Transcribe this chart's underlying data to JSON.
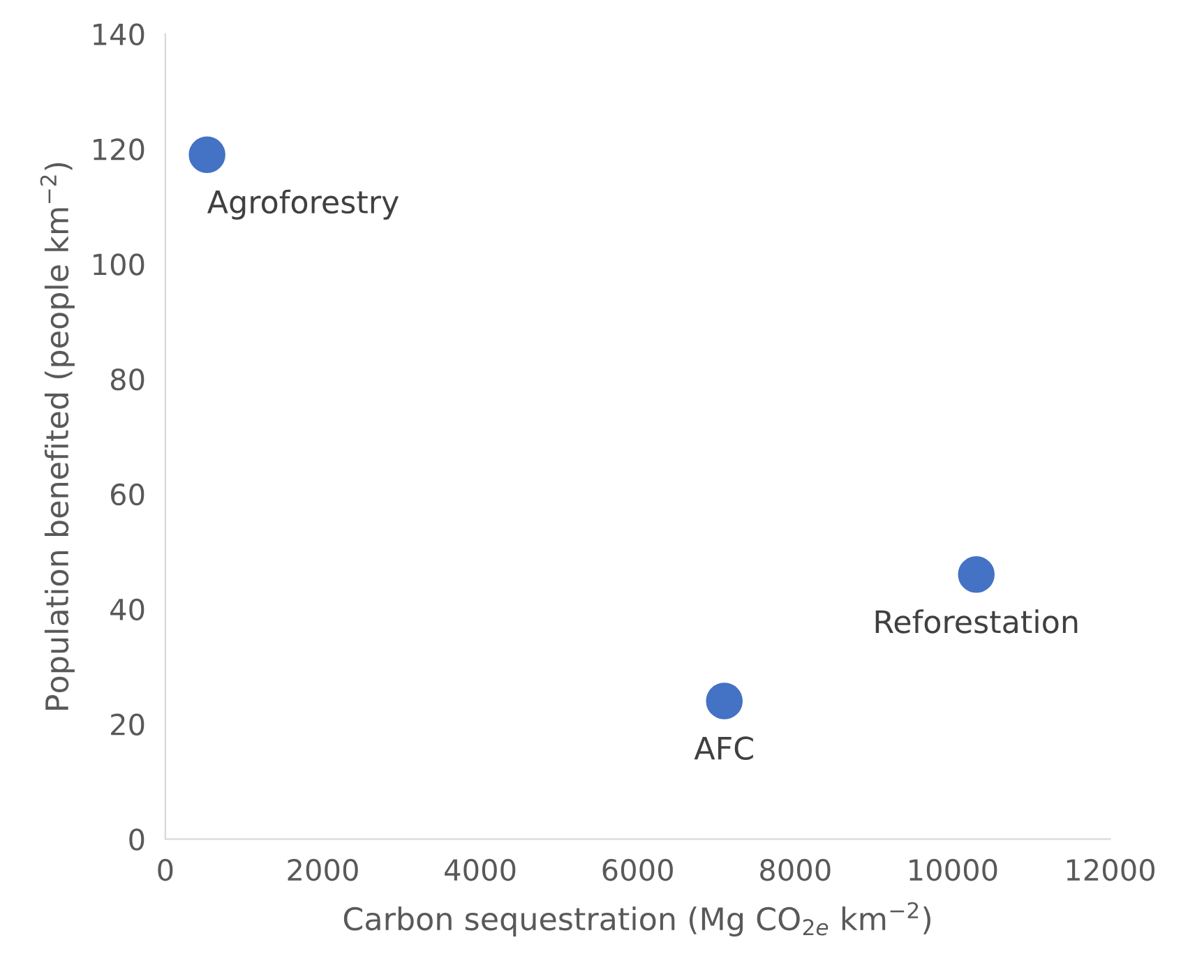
{
  "chart_data": {
    "type": "scatter",
    "xlabel": "Carbon sequestration (Mg CO$_{2e}$ km$^{−2}$)",
    "ylabel": "Population benefited (people km$^{−2}$)",
    "x": [
      530,
      7100,
      10300
    ],
    "values": [
      119,
      24,
      46
    ],
    "color": "#4472c4",
    "marker": "circle",
    "xlim": [
      0,
      12000
    ],
    "xticks": [
      0,
      2000,
      4000,
      6000,
      8000,
      10000,
      12000
    ],
    "ylim": [
      0,
      140
    ],
    "yticks": [
      0,
      20,
      40,
      60,
      80,
      100,
      120,
      140
    ],
    "grid": false,
    "legend": false,
    "annotations": [
      {
        "text": "Agroforestry",
        "x": 530,
        "y": 119
      },
      {
        "text": "AFC",
        "x": 7100,
        "y": 24
      },
      {
        "text": "Reforestation",
        "x": 10300,
        "y": 46
      }
    ]
  }
}
